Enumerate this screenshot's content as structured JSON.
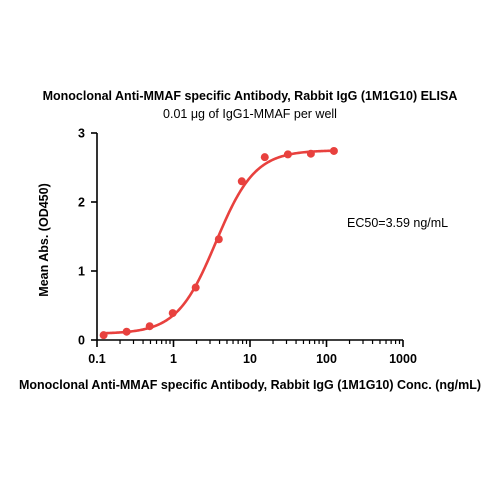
{
  "chart_data": {
    "type": "scatter",
    "title": "Monoclonal Anti-MMAF specific Antibody, Rabbit IgG (1M1G10) ELISA",
    "subtitle": "0.01 μg of IgG1-MMAF per well",
    "xlabel": "Monoclonal Anti-MMAF specific Antibody, Rabbit IgG (1M1G10) Conc. (ng/mL)",
    "ylabel": "Mean Abs. (OD450)",
    "x_scale": "log",
    "xlim": [
      0.1,
      1000
    ],
    "ylim": [
      0,
      3
    ],
    "x_ticks": [
      0.1,
      1,
      10,
      100,
      1000
    ],
    "x_tick_labels": [
      "0.1",
      "1",
      "10",
      "100",
      "1000"
    ],
    "y_ticks": [
      0,
      1,
      2,
      3
    ],
    "y_tick_labels": [
      "0",
      "1",
      "2",
      "3"
    ],
    "series": [
      {
        "x": [
          0.122,
          0.244,
          0.488,
          0.977,
          1.95,
          3.91,
          7.81,
          15.6,
          31.3,
          62.5,
          125
        ],
        "y": [
          0.07,
          0.12,
          0.2,
          0.39,
          0.76,
          1.46,
          2.3,
          2.65,
          2.69,
          2.7,
          2.74
        ]
      }
    ],
    "fit": {
      "bottom": 0.09,
      "top": 2.75,
      "ec50": 3.59,
      "hill": 1.7
    },
    "annotation": "EC50=3.59 ng/mL",
    "color": "#e8413e",
    "grid": false
  }
}
